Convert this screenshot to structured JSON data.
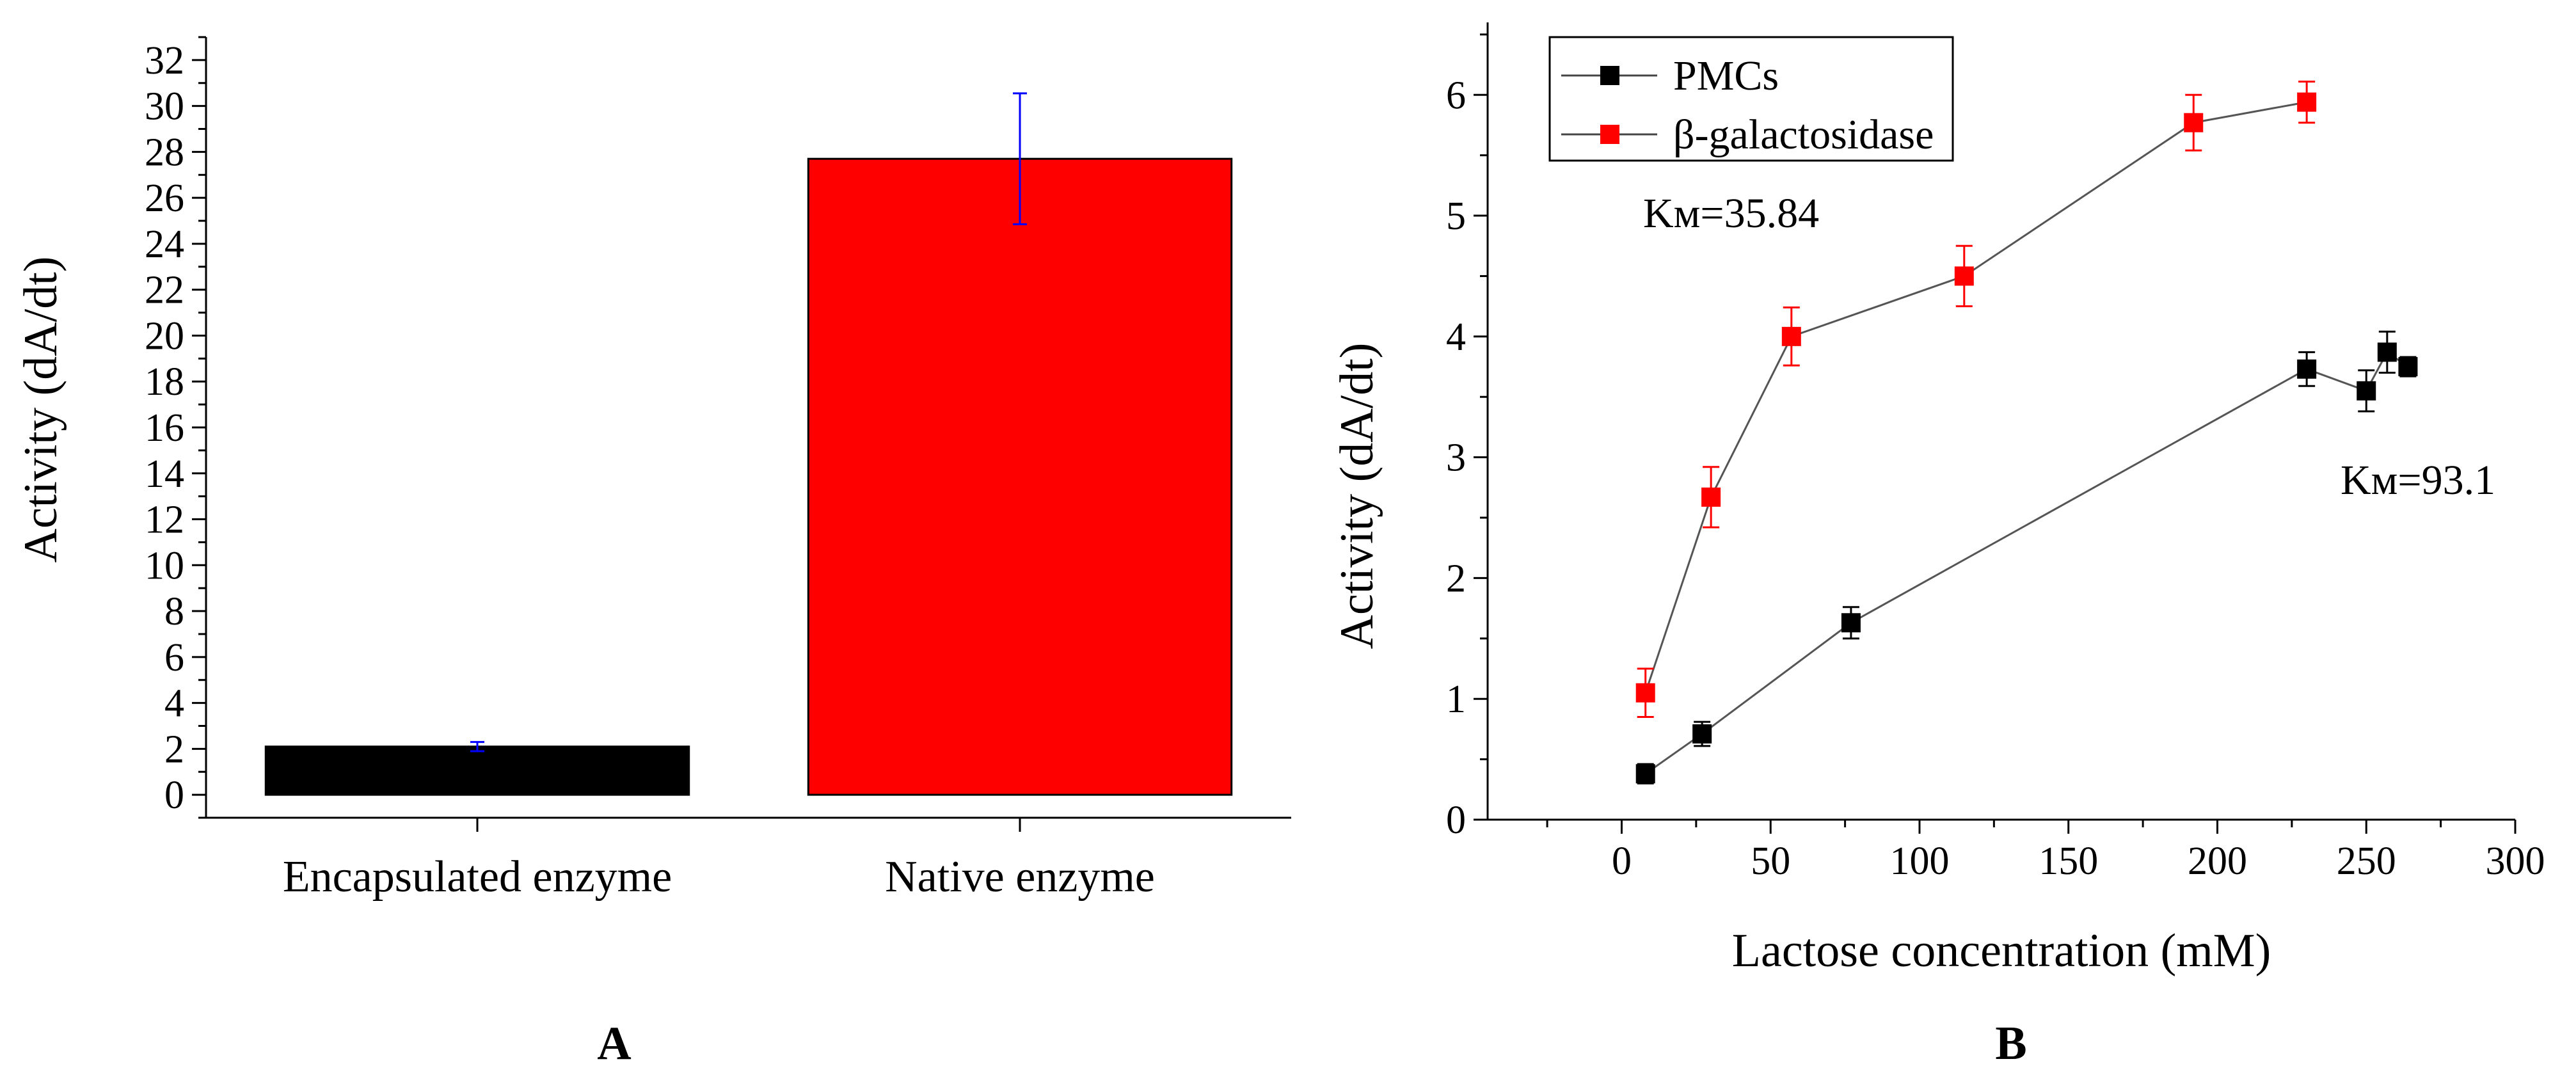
{
  "chart_data": [
    {
      "panel": "A",
      "type": "bar",
      "categories": [
        "Encapsulated enzyme",
        "Native enzyme"
      ],
      "values": [
        2.1,
        27.7
      ],
      "errors": [
        0.2,
        2.85
      ],
      "colors": [
        "#000000",
        "#ff0000"
      ],
      "error_color": "#0000ff",
      "xlabel": "",
      "ylabel": "Activity (dA/dt)",
      "ylim": [
        -1,
        33
      ],
      "yticks": [
        0,
        2,
        4,
        6,
        8,
        10,
        12,
        14,
        16,
        18,
        20,
        22,
        24,
        26,
        28,
        30,
        32
      ]
    },
    {
      "panel": "B",
      "type": "line",
      "xlabel": "Lactose concentration (mM)",
      "ylabel": "Activity (dA/dt)",
      "xlim": [
        -45,
        300
      ],
      "ylim": [
        0,
        6.6
      ],
      "xticks": [
        0,
        50,
        100,
        150,
        200,
        250,
        300
      ],
      "yticks": [
        0,
        1,
        2,
        3,
        4,
        5,
        6
      ],
      "legend_position": "top-left",
      "series": [
        {
          "name": "PMCs",
          "color": "#000000",
          "x": [
            8,
            27,
            77,
            230,
            250,
            257,
            264
          ],
          "y": [
            0.38,
            0.71,
            1.63,
            3.73,
            3.55,
            3.87,
            3.75
          ],
          "err": [
            0.08,
            0.1,
            0.13,
            0.14,
            0.17,
            0.17,
            0.08
          ]
        },
        {
          "name": "β-galactosidase",
          "color": "#ff0000",
          "x": [
            8,
            30,
            57,
            115,
            192,
            230
          ],
          "y": [
            1.05,
            2.67,
            4.0,
            4.5,
            5.77,
            5.94
          ],
          "err": [
            0.2,
            0.25,
            0.24,
            0.25,
            0.23,
            0.17
          ]
        }
      ],
      "annotations": [
        "Kм=35.84",
        "Kм=93.1"
      ]
    }
  ]
}
